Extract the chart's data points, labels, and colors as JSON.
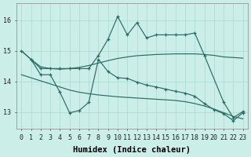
{
  "background_color": "#cceee8",
  "grid_color": "#aad8d2",
  "line_color": "#2a6b65",
  "xlabel": "Humidex (Indice chaleur)",
  "xlabel_fontsize": 7.5,
  "tick_fontsize": 6,
  "yticks": [
    13,
    14,
    15,
    16
  ],
  "ylim": [
    12.45,
    16.55
  ],
  "xlim": [
    -0.5,
    23.5
  ],
  "xticks": [
    0,
    1,
    2,
    3,
    4,
    5,
    6,
    7,
    8,
    9,
    10,
    11,
    12,
    13,
    14,
    15,
    16,
    17,
    18,
    19,
    20,
    21,
    22,
    23
  ],
  "smooth_upper_x": [
    0,
    1,
    2,
    3,
    4,
    5,
    6,
    7,
    8,
    9,
    10,
    11,
    12,
    13,
    14,
    15,
    16,
    17,
    18,
    19,
    20,
    21,
    22,
    23
  ],
  "smooth_upper_y": [
    15.0,
    14.72,
    14.48,
    14.42,
    14.4,
    14.42,
    14.46,
    14.52,
    14.6,
    14.68,
    14.75,
    14.8,
    14.84,
    14.86,
    14.88,
    14.89,
    14.9,
    14.9,
    14.9,
    14.88,
    14.85,
    14.8,
    14.78,
    14.76
  ],
  "smooth_lower_x": [
    0,
    1,
    2,
    3,
    4,
    5,
    6,
    7,
    8,
    9,
    10,
    11,
    12,
    13,
    14,
    15,
    16,
    17,
    18,
    19,
    20,
    21,
    22,
    23
  ],
  "smooth_lower_y": [
    14.22,
    14.12,
    14.02,
    13.92,
    13.82,
    13.72,
    13.65,
    13.6,
    13.56,
    13.53,
    13.5,
    13.48,
    13.46,
    13.44,
    13.42,
    13.4,
    13.38,
    13.34,
    13.28,
    13.2,
    13.1,
    12.98,
    12.86,
    12.78
  ],
  "jagged_upper_x": [
    0,
    1,
    2,
    3,
    4,
    5,
    6,
    7,
    8,
    9,
    10,
    11,
    12,
    13,
    14,
    15,
    16,
    17,
    18,
    19,
    21,
    22,
    23
  ],
  "jagged_upper_y": [
    15.0,
    14.72,
    14.42,
    14.42,
    14.42,
    14.42,
    14.42,
    14.42,
    14.85,
    15.38,
    16.12,
    15.52,
    15.92,
    15.42,
    15.52,
    15.52,
    15.52,
    15.52,
    15.58,
    14.85,
    13.32,
    12.82,
    13.02
  ],
  "jagged_lower_x": [
    1,
    2,
    3,
    4,
    5,
    6,
    7,
    8,
    9,
    10,
    11,
    12,
    13,
    14,
    15,
    16,
    17,
    18,
    19,
    20,
    21,
    22,
    23
  ],
  "jagged_lower_y": [
    14.72,
    14.22,
    14.22,
    13.65,
    12.98,
    13.05,
    13.32,
    14.72,
    14.32,
    14.12,
    14.1,
    13.98,
    13.88,
    13.82,
    13.75,
    13.68,
    13.62,
    13.52,
    13.28,
    13.08,
    12.95,
    12.72,
    12.98
  ]
}
